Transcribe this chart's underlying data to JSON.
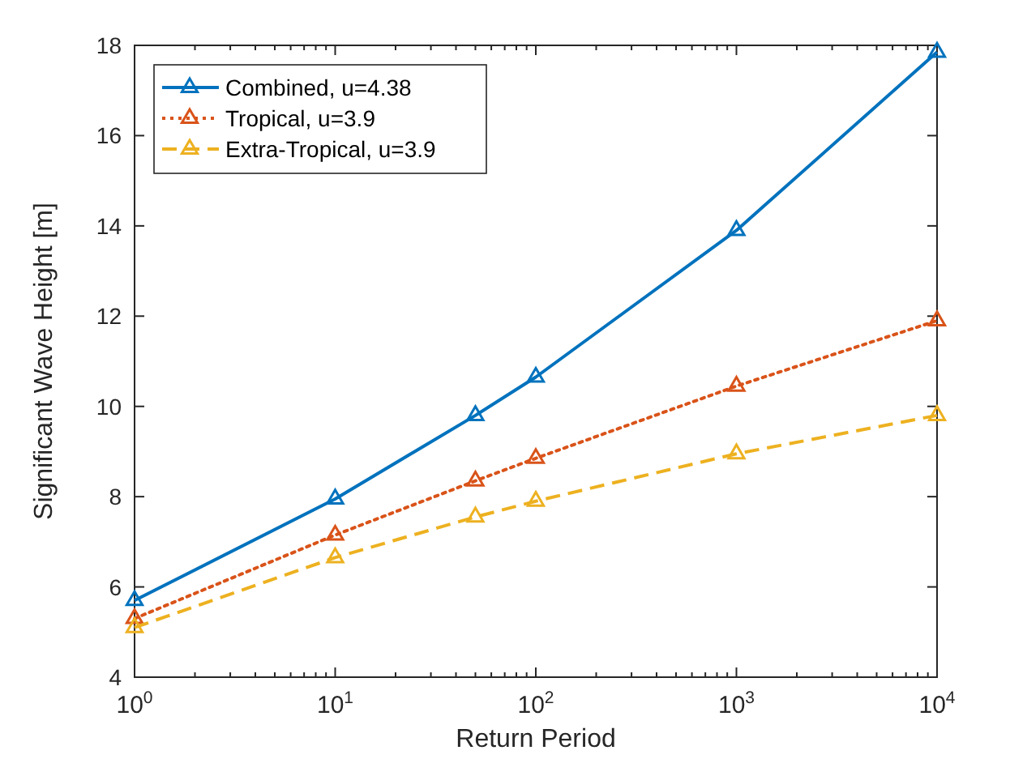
{
  "chart_data": {
    "type": "line",
    "xlabel": "Return Period",
    "ylabel": "Significant Wave Height [m]",
    "log": "x",
    "x": [
      1,
      10,
      50,
      100,
      1000,
      10000
    ],
    "series": [
      {
        "name": "Combined, u=4.38",
        "color": "#0072bd",
        "values": [
          5.7,
          7.95,
          9.8,
          10.65,
          13.9,
          17.85
        ],
        "line_style": "solid"
      },
      {
        "name": "Tropical, u=3.9",
        "color": "#d95319",
        "values": [
          5.3,
          7.15,
          8.35,
          8.85,
          10.45,
          11.9
        ],
        "line_style": "dotted"
      },
      {
        "name": "Extra-Tropical, u=3.9",
        "color": "#edb120",
        "values": [
          5.1,
          6.65,
          7.55,
          7.9,
          8.95,
          9.8
        ],
        "line_style": "dashed"
      }
    ],
    "xlim": [
      1,
      10000
    ],
    "xticks": [
      {
        "value": 1,
        "label": "10$^{0}$"
      },
      {
        "value": 10,
        "label": "10$^{1}$"
      },
      {
        "value": 100,
        "label": "10$^{2}$"
      },
      {
        "value": 1000,
        "label": "10$^{3}$"
      },
      {
        "value": 10000,
        "label": "10$^{4}$"
      }
    ],
    "ylim": [
      4,
      18
    ],
    "yticks": [
      4,
      6,
      8,
      10,
      12,
      14,
      16,
      18
    ],
    "marker": "triangle",
    "legend": "top left",
    "grid": false
  }
}
